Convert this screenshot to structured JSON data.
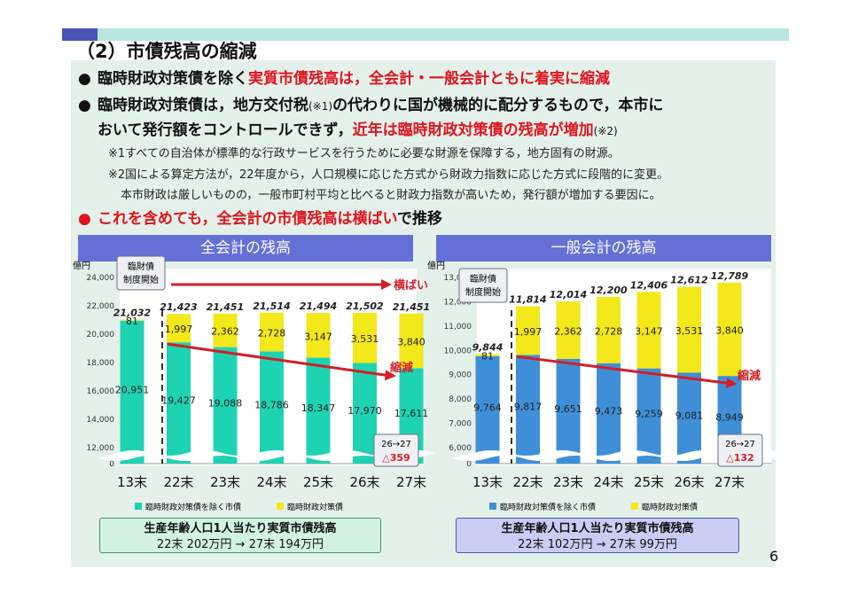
{
  "title": "（2）市債残高の縮減",
  "bullets": {
    "b1": {
      "plain": "臨時財政対策債を除く",
      "red": "実質市債残高は，全会計・一般会計ともに着実に縮減"
    },
    "b2a": "臨時財政対策債は，地方交付税",
    "b2note": "(※1)",
    "b2b": "の代わりに国が機械的に配分するもので，本市に",
    "b2c": "おいて発行額をコントロールできず，",
    "b2red": "近年は臨時財政対策債の残高が増加",
    "b2note2": "(※2)",
    "note1": "※1すべての自治体が標準的な行政サービスを行うために必要な財源を保障する，地方固有の財源。",
    "note2": "※2国による算定方法が，22年度から，人口規模に応じた方式から財政力指数に応じた方式に段階的に変更。",
    "note3": "本市財政は厳しいものの，一般市町村平均と比べると財政力指数が高いため，発行額が増加する要因に。",
    "b3red": "これを含めても，全会計の市債残高は横ばい",
    "b3plain": "で推移"
  },
  "chart_data": [
    {
      "type": "bar",
      "title": "全会計の残高",
      "ylabel": "億円",
      "ylim": [
        0,
        24000
      ],
      "y_ticks": [
        "0",
        "12,000",
        "14,000",
        "16,000",
        "18,000",
        "20,000",
        "22,000",
        "24,000"
      ],
      "axis_break": true,
      "categories": [
        "13末",
        "22末",
        "23末",
        "24末",
        "25末",
        "26末",
        "27末"
      ],
      "series": [
        {
          "name": "臨時財政対策債を除く市債",
          "values": [
            20951,
            19427,
            19088,
            18786,
            18347,
            17970,
            17611
          ],
          "labels": [
            "20,951",
            "19,427",
            "19,088",
            "18,786",
            "18,347",
            "17,970",
            "17,611"
          ]
        },
        {
          "name": "臨時財政対策債",
          "values": [
            81,
            1997,
            2362,
            2728,
            3147,
            3531,
            3840
          ],
          "labels": [
            "81",
            "1,997",
            "2,362",
            "2,728",
            "3,147",
            "3,531",
            "3,840"
          ]
        }
      ],
      "totals": [
        "21,032",
        "21,423",
        "21,451",
        "21,514",
        "21,494",
        "21,502",
        "21,451"
      ],
      "annotations": {
        "system_start": "臨財債\n制度開始",
        "flat": "横ばい",
        "reduce": "縮減",
        "change_label": "26→27",
        "change_value": "△359"
      },
      "footer": {
        "line1": "生産年齢人口1人当たり実質市債残高",
        "line2": "22末 202万円 → 27末 194万円"
      },
      "colors": {
        "base": "#1ed3b2",
        "rinzai": "#f2e81a"
      }
    },
    {
      "type": "bar",
      "title": "一般会計の残高",
      "ylabel": "億円",
      "ylim": [
        0,
        13000
      ],
      "y_ticks": [
        "0",
        "6,000",
        "7,000",
        "8,000",
        "9,000",
        "10,000",
        "11,000",
        "12,000",
        "13,000"
      ],
      "axis_break": true,
      "categories": [
        "13末",
        "22末",
        "23末",
        "24末",
        "25末",
        "26末",
        "27末"
      ],
      "series": [
        {
          "name": "臨時財政対策債を除く市債",
          "values": [
            9764,
            9817,
            9651,
            9473,
            9259,
            9081,
            8949
          ],
          "labels": [
            "9,764",
            "9,817",
            "9,651",
            "9,473",
            "9,259",
            "9,081",
            "8,949"
          ]
        },
        {
          "name": "臨時財政対策債",
          "values": [
            81,
            1997,
            2362,
            2728,
            3147,
            3531,
            3840
          ],
          "labels": [
            "81",
            "1,997",
            "2,362",
            "2,728",
            "3,147",
            "3,531",
            "3,840"
          ]
        }
      ],
      "totals": [
        "9,844",
        "11,814",
        "12,014",
        "12,200",
        "12,406",
        "12,612",
        "12,789"
      ],
      "annotations": {
        "system_start": "臨財債\n制度開始",
        "reduce": "縮減",
        "change_label": "26→27",
        "change_value": "△132"
      },
      "footer": {
        "line1": "生産年齢人口1人当たり実質市債残高",
        "line2": "22末 102万円 → 27末 99万円"
      },
      "colors": {
        "base": "#3f8fd8",
        "rinzai": "#f2e81a"
      }
    }
  ],
  "page_number": "6"
}
